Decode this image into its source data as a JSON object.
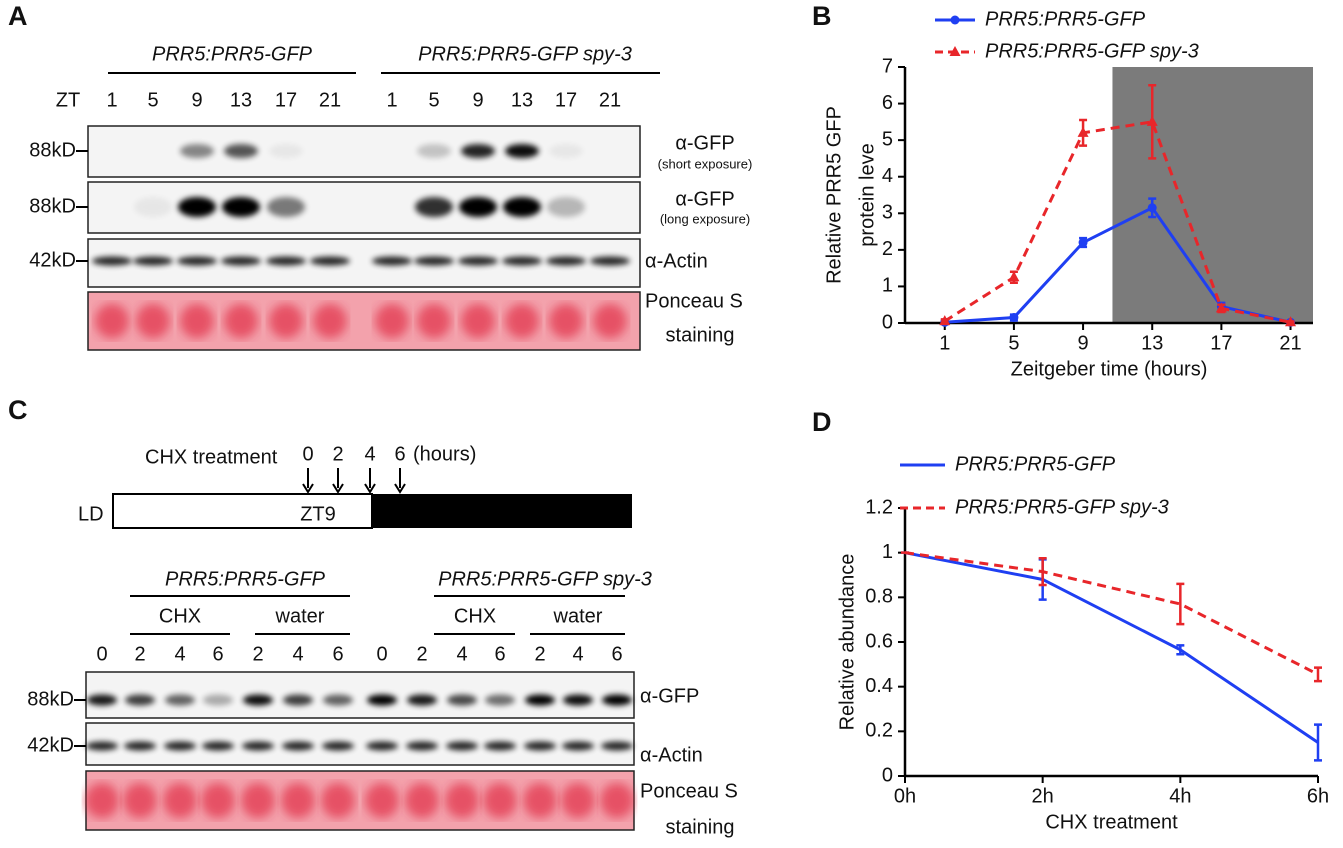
{
  "panel_labels": [
    "A",
    "B",
    "C",
    "D"
  ],
  "panel_a": {
    "groups": [
      "PRR5:PRR5-GFP",
      "PRR5:PRR5-GFP spy-3"
    ],
    "zt_label": "ZT",
    "lanes": [
      "1",
      "5",
      "9",
      "13",
      "17",
      "21",
      "1",
      "5",
      "9",
      "13",
      "17",
      "21"
    ],
    "markers": [
      "88kD",
      "88kD",
      "42kD"
    ],
    "blot_labels": [
      "α-GFP",
      "(short exposure)",
      "α-GFP",
      "(long exposure)",
      "α-Actin",
      "Ponceau S",
      "staining"
    ]
  },
  "panel_c": {
    "treatment_label": "CHX treatment",
    "times": [
      "0",
      "2",
      "4",
      "6"
    ],
    "time_unit": "(hours)",
    "ld_label": "LD",
    "zt_label": "ZT9",
    "groups": [
      "PRR5:PRR5-GFP",
      "PRR5:PRR5-GFP spy-3"
    ],
    "subgroups": [
      "CHX",
      "water",
      "CHX",
      "water"
    ],
    "lanes": [
      "0",
      "2",
      "4",
      "6",
      "2",
      "4",
      "6",
      "0",
      "2",
      "4",
      "6",
      "2",
      "4",
      "6"
    ],
    "markers": [
      "88kD",
      "42kD"
    ],
    "blot_labels": [
      "α-GFP",
      "α-Actin",
      "Ponceau S",
      "staining"
    ]
  },
  "chart_data": [
    {
      "type": "line",
      "ylabel": [
        "Relative PRR5 GFP",
        "protein leve"
      ],
      "xlabel": "Zeitgeber time (hours)",
      "x": [
        1,
        5,
        9,
        13,
        17,
        21
      ],
      "xlim": [
        -1.3,
        22.3
      ],
      "xticks": [
        1,
        5,
        9,
        13,
        17,
        21
      ],
      "ylim": [
        0,
        7
      ],
      "yticks": [
        0,
        1,
        2,
        3,
        4,
        5,
        6,
        7
      ],
      "shaded_xrange": [
        10.7,
        22.3
      ],
      "shade_color": "#7b7b7b",
      "series": [
        {
          "name": "PRR5:PRR5-GFP",
          "color": "#1f3ff2",
          "dash": false,
          "marker": "circle",
          "values": [
            0.02,
            0.15,
            2.2,
            3.15,
            0.45,
            0.02
          ],
          "errors": [
            0.05,
            0.08,
            0.12,
            0.25,
            0.1,
            0.02
          ]
        },
        {
          "name": "PRR5:PRR5-GFP spy-3",
          "color": "#e8262a",
          "dash": true,
          "marker": "triangle",
          "values": [
            0.05,
            1.25,
            5.2,
            5.5,
            0.4,
            0.02
          ],
          "errors": [
            0.05,
            0.15,
            0.35,
            1.0,
            0.1,
            0.02
          ]
        }
      ]
    },
    {
      "type": "line",
      "ylabel": [
        "Relative abundance"
      ],
      "xlabel": "CHX treatment",
      "categories": [
        "0h",
        "2h",
        "4h",
        "6h"
      ],
      "ylim": [
        0,
        1.2
      ],
      "yticks": [
        0,
        0.2,
        0.4,
        0.6,
        0.8,
        1,
        1.2
      ],
      "series": [
        {
          "name": "PRR5:PRR5-GFP",
          "color": "#1f3ff2",
          "dash": false,
          "values": [
            1,
            0.88,
            0.565,
            0.15
          ],
          "errors": [
            0,
            0.09,
            0.02,
            0.08
          ]
        },
        {
          "name": "PRR5:PRR5-GFP spy-3",
          "color": "#e8262a",
          "dash": true,
          "values": [
            1,
            0.915,
            0.77,
            0.455
          ],
          "errors": [
            0,
            0.06,
            0.09,
            0.03
          ]
        }
      ]
    }
  ]
}
